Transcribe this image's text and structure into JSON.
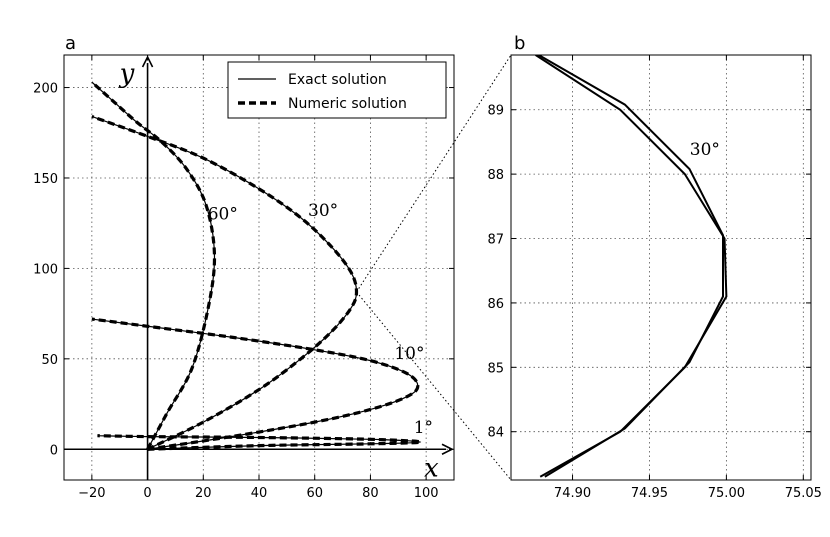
{
  "chart_data": [
    {
      "panel": "a",
      "type": "line",
      "xlim": [
        -30,
        110
      ],
      "ylim": [
        -17,
        218
      ],
      "xticks": [
        -20,
        0,
        20,
        40,
        60,
        80,
        100
      ],
      "yticks": [
        0,
        50,
        100,
        150,
        200
      ],
      "axis_var_x": "x",
      "axis_var_y": "y",
      "grid": true,
      "legend": {
        "placement": "top-right",
        "entries": [
          {
            "label": "Exact solution",
            "style": "solid"
          },
          {
            "label": "Numeric solution",
            "style": "dashed"
          }
        ]
      },
      "series": [
        {
          "label": "60°",
          "style": "exact+numeric",
          "points": [
            [
              0,
              0
            ],
            [
              7,
              20
            ],
            [
              16,
              45
            ],
            [
              22,
              80
            ],
            [
              24,
              108
            ],
            [
              21,
              135
            ],
            [
              14,
              155
            ],
            [
              5,
              170
            ],
            [
              -4,
              181
            ],
            [
              -12,
              192
            ],
            [
              -20,
              203
            ]
          ]
        },
        {
          "label": "30°",
          "style": "exact+numeric",
          "points": [
            [
              0,
              0
            ],
            [
              20,
              15
            ],
            [
              40,
              33
            ],
            [
              55,
              50
            ],
            [
              66,
              65
            ],
            [
              73,
              78
            ],
            [
              75,
              87
            ],
            [
              73,
              98
            ],
            [
              66,
              112
            ],
            [
              55,
              128
            ],
            [
              40,
              144
            ],
            [
              20,
              161
            ],
            [
              0,
              173
            ],
            [
              -20,
              184
            ]
          ]
        },
        {
          "label": "10°",
          "style": "exact+numeric",
          "points": [
            [
              0,
              0
            ],
            [
              30,
              7
            ],
            [
              60,
              15
            ],
            [
              80,
              22
            ],
            [
              93,
              29
            ],
            [
              97,
              35
            ],
            [
              93,
              42
            ],
            [
              80,
              49
            ],
            [
              60,
              55
            ],
            [
              30,
              62
            ],
            [
              0,
              68
            ],
            [
              -20,
              72
            ]
          ]
        },
        {
          "label": "1°",
          "style": "exact+numeric",
          "points": [
            [
              0,
              0
            ],
            [
              40,
              2
            ],
            [
              80,
              3
            ],
            [
              98,
              4
            ],
            [
              80,
              5.5
            ],
            [
              40,
              6.5
            ],
            [
              0,
              7
            ],
            [
              -18,
              7.5
            ]
          ]
        }
      ],
      "annotations": [
        {
          "text": "60°",
          "x": 27,
          "y": 127
        },
        {
          "text": "30°",
          "x": 63,
          "y": 129
        },
        {
          "text": "10°",
          "x": 94,
          "y": 50
        },
        {
          "text": "1°",
          "x": 99,
          "y": 9
        }
      ]
    },
    {
      "panel": "b",
      "type": "line",
      "xlim": [
        74.86,
        75.055
      ],
      "ylim": [
        83.25,
        89.85
      ],
      "xticks": [
        "74.90",
        "74.95",
        "75.00",
        "75.05"
      ],
      "yticks": [
        "84",
        "85",
        "86",
        "87",
        "88",
        "89"
      ],
      "grid": true,
      "series": [
        {
          "label": "exact",
          "points": [
            [
              74.882,
              83.3
            ],
            [
              74.934,
              84.05
            ],
            [
              74.976,
              85.08
            ],
            [
              74.9978,
              86.1
            ],
            [
              74.9978,
              87.05
            ],
            [
              74.976,
              88.08
            ],
            [
              74.934,
              89.08
            ],
            [
              74.878,
              89.85
            ]
          ]
        },
        {
          "label": "numeric",
          "points": [
            [
              74.879,
              83.3
            ],
            [
              74.931,
              84.0
            ],
            [
              74.973,
              85.0
            ],
            [
              75.0,
              86.1
            ],
            [
              74.9988,
              87.0
            ],
            [
              74.973,
              88.0
            ],
            [
              74.931,
              89.0
            ],
            [
              74.876,
              89.85
            ]
          ]
        }
      ],
      "annotations": [
        {
          "text": "30°",
          "x": 74.986,
          "y": 88.3
        }
      ]
    }
  ],
  "panel_a_label": "a",
  "panel_b_label": "b"
}
